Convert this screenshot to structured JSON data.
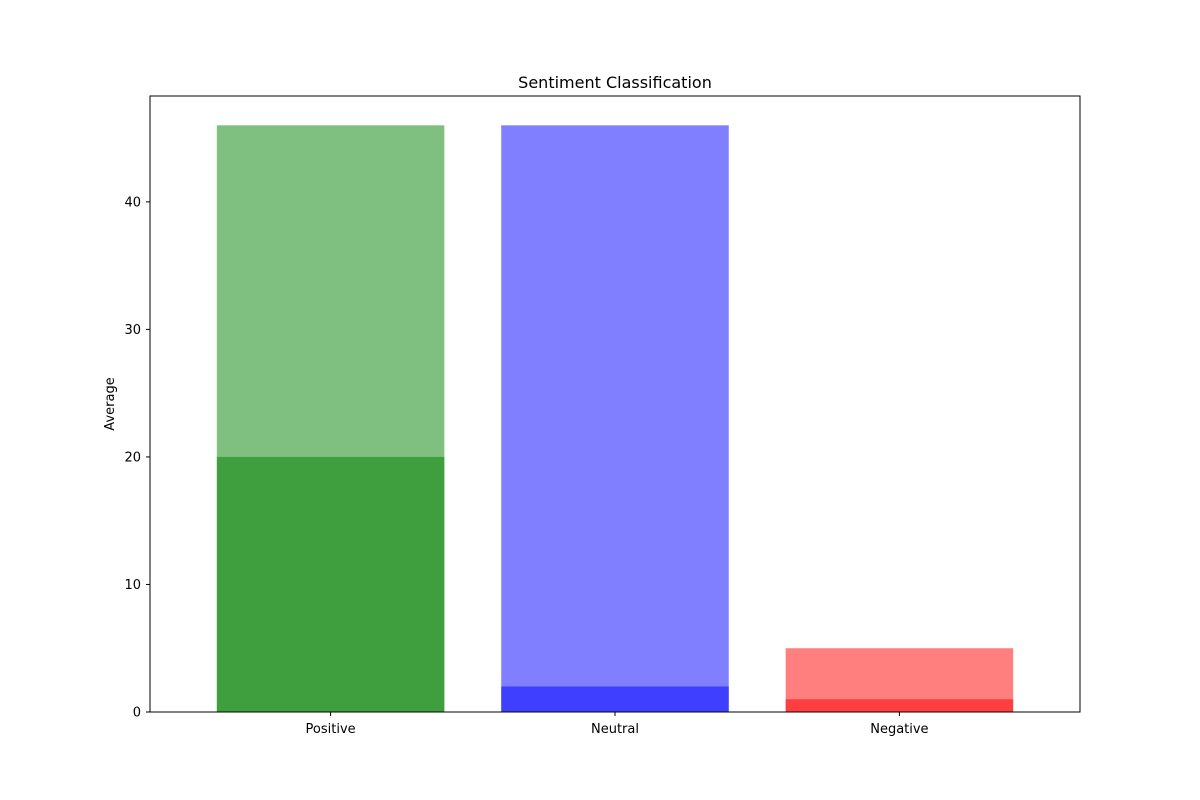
{
  "chart_data": {
    "type": "bar",
    "title": "Sentiment Classification",
    "xlabel": "",
    "ylabel": "Average",
    "ylim": [
      0,
      48.3
    ],
    "yticks": [
      0,
      10,
      20,
      30,
      40
    ],
    "categories": [
      "Positive",
      "Neutral",
      "Negative"
    ],
    "series": [
      {
        "values": [
          46,
          46,
          5
        ],
        "colors": [
          "#008000",
          "#0000ff",
          "#ff0000"
        ],
        "opacity": 0.5
      },
      {
        "values": [
          20,
          2,
          1
        ],
        "colors": [
          "#008000",
          "#0000ff",
          "#ff0000"
        ],
        "opacity": 0.5
      }
    ],
    "grid": false,
    "legend": "none"
  }
}
